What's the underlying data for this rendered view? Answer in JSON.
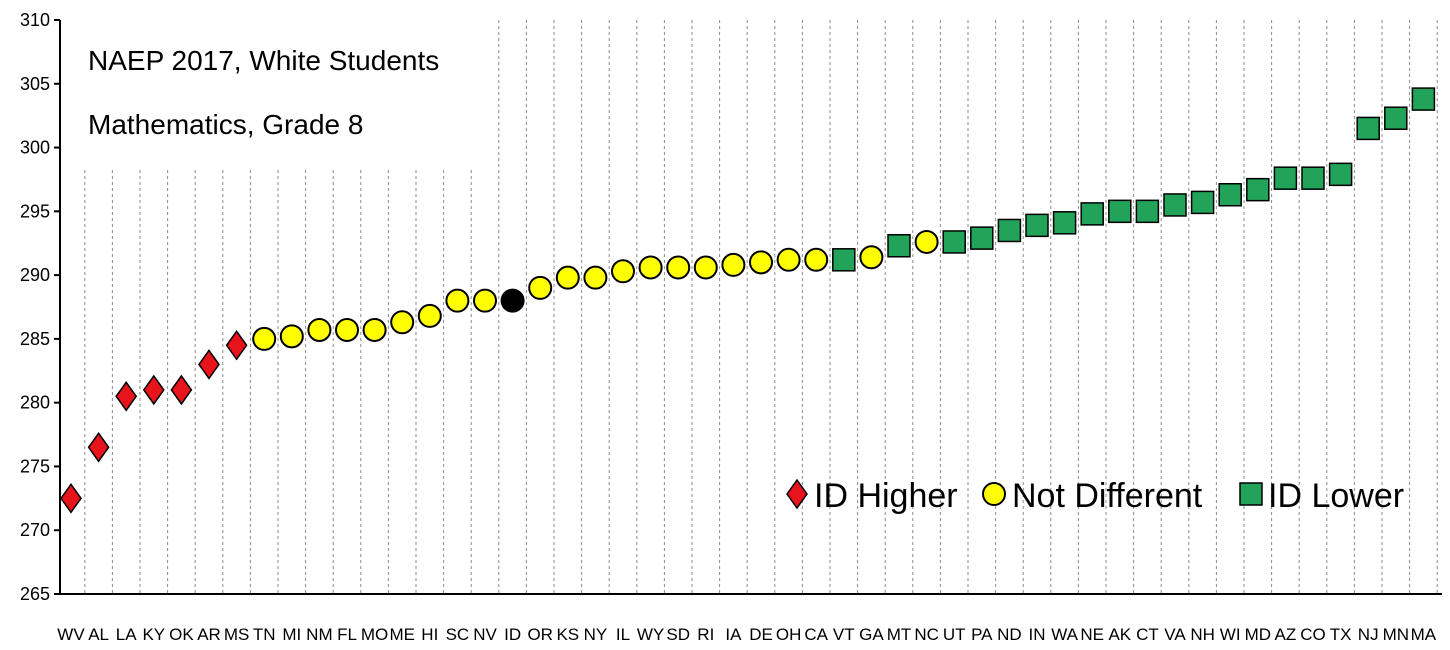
{
  "chart_data": {
    "type": "scatter",
    "title_lines": [
      "NAEP 2017, White Students",
      "Mathematics, Grade 8"
    ],
    "xlabel": "",
    "ylabel": "",
    "ylim": [
      265,
      310
    ],
    "yticks": [
      265,
      270,
      275,
      280,
      285,
      290,
      295,
      300,
      305,
      310
    ],
    "grid": "vertical dashed",
    "legend_position": "bottom-right",
    "categories": [
      "WV",
      "AL",
      "LA",
      "KY",
      "OK",
      "AR",
      "MS",
      "TN",
      "MI",
      "NM",
      "FL",
      "MO",
      "ME",
      "HI",
      "SC",
      "NV",
      "ID",
      "OR",
      "KS",
      "NY",
      "IL",
      "WY",
      "SD",
      "RI",
      "IA",
      "DE",
      "OH",
      "CA",
      "VT",
      "GA",
      "MT",
      "NC",
      "UT",
      "PA",
      "ND",
      "IN",
      "WA",
      "NE",
      "AK",
      "CT",
      "VA",
      "NH",
      "WI",
      "MD",
      "AZ",
      "CO",
      "TX",
      "NJ",
      "MN",
      "MA"
    ],
    "values": [
      272.5,
      276.5,
      280.5,
      281,
      281,
      283,
      284.5,
      285,
      285.2,
      285.7,
      285.7,
      285.7,
      286.3,
      286.8,
      288,
      288,
      288,
      289,
      289.8,
      289.8,
      290.3,
      290.6,
      290.6,
      290.6,
      290.8,
      291,
      291.2,
      291.2,
      291.2,
      291.4,
      292.3,
      292.6,
      292.6,
      292.9,
      293.5,
      293.9,
      294.1,
      294.8,
      295,
      295,
      295.5,
      295.7,
      296.3,
      296.7,
      297.6,
      297.6,
      297.9,
      301.5,
      302.3,
      303.8
    ],
    "groups": [
      "higher",
      "higher",
      "higher",
      "higher",
      "higher",
      "higher",
      "higher",
      "same",
      "same",
      "same",
      "same",
      "same",
      "same",
      "same",
      "same",
      "same",
      "focus",
      "same",
      "same",
      "same",
      "same",
      "same",
      "same",
      "same",
      "same",
      "same",
      "same",
      "same",
      "lower",
      "same",
      "lower",
      "same",
      "lower",
      "lower",
      "lower",
      "lower",
      "lower",
      "lower",
      "lower",
      "lower",
      "lower",
      "lower",
      "lower",
      "lower",
      "lower",
      "lower",
      "lower",
      "lower",
      "lower",
      "lower"
    ],
    "legend": [
      {
        "key": "higher",
        "label": "ID Higher",
        "marker": "diamond",
        "color": "#e8141b"
      },
      {
        "key": "same",
        "label": "Not Different",
        "marker": "circle",
        "color": "#ffff00"
      },
      {
        "key": "lower",
        "label": "ID Lower",
        "marker": "square",
        "color": "#21a45a"
      }
    ],
    "focus_color": "#000000"
  }
}
